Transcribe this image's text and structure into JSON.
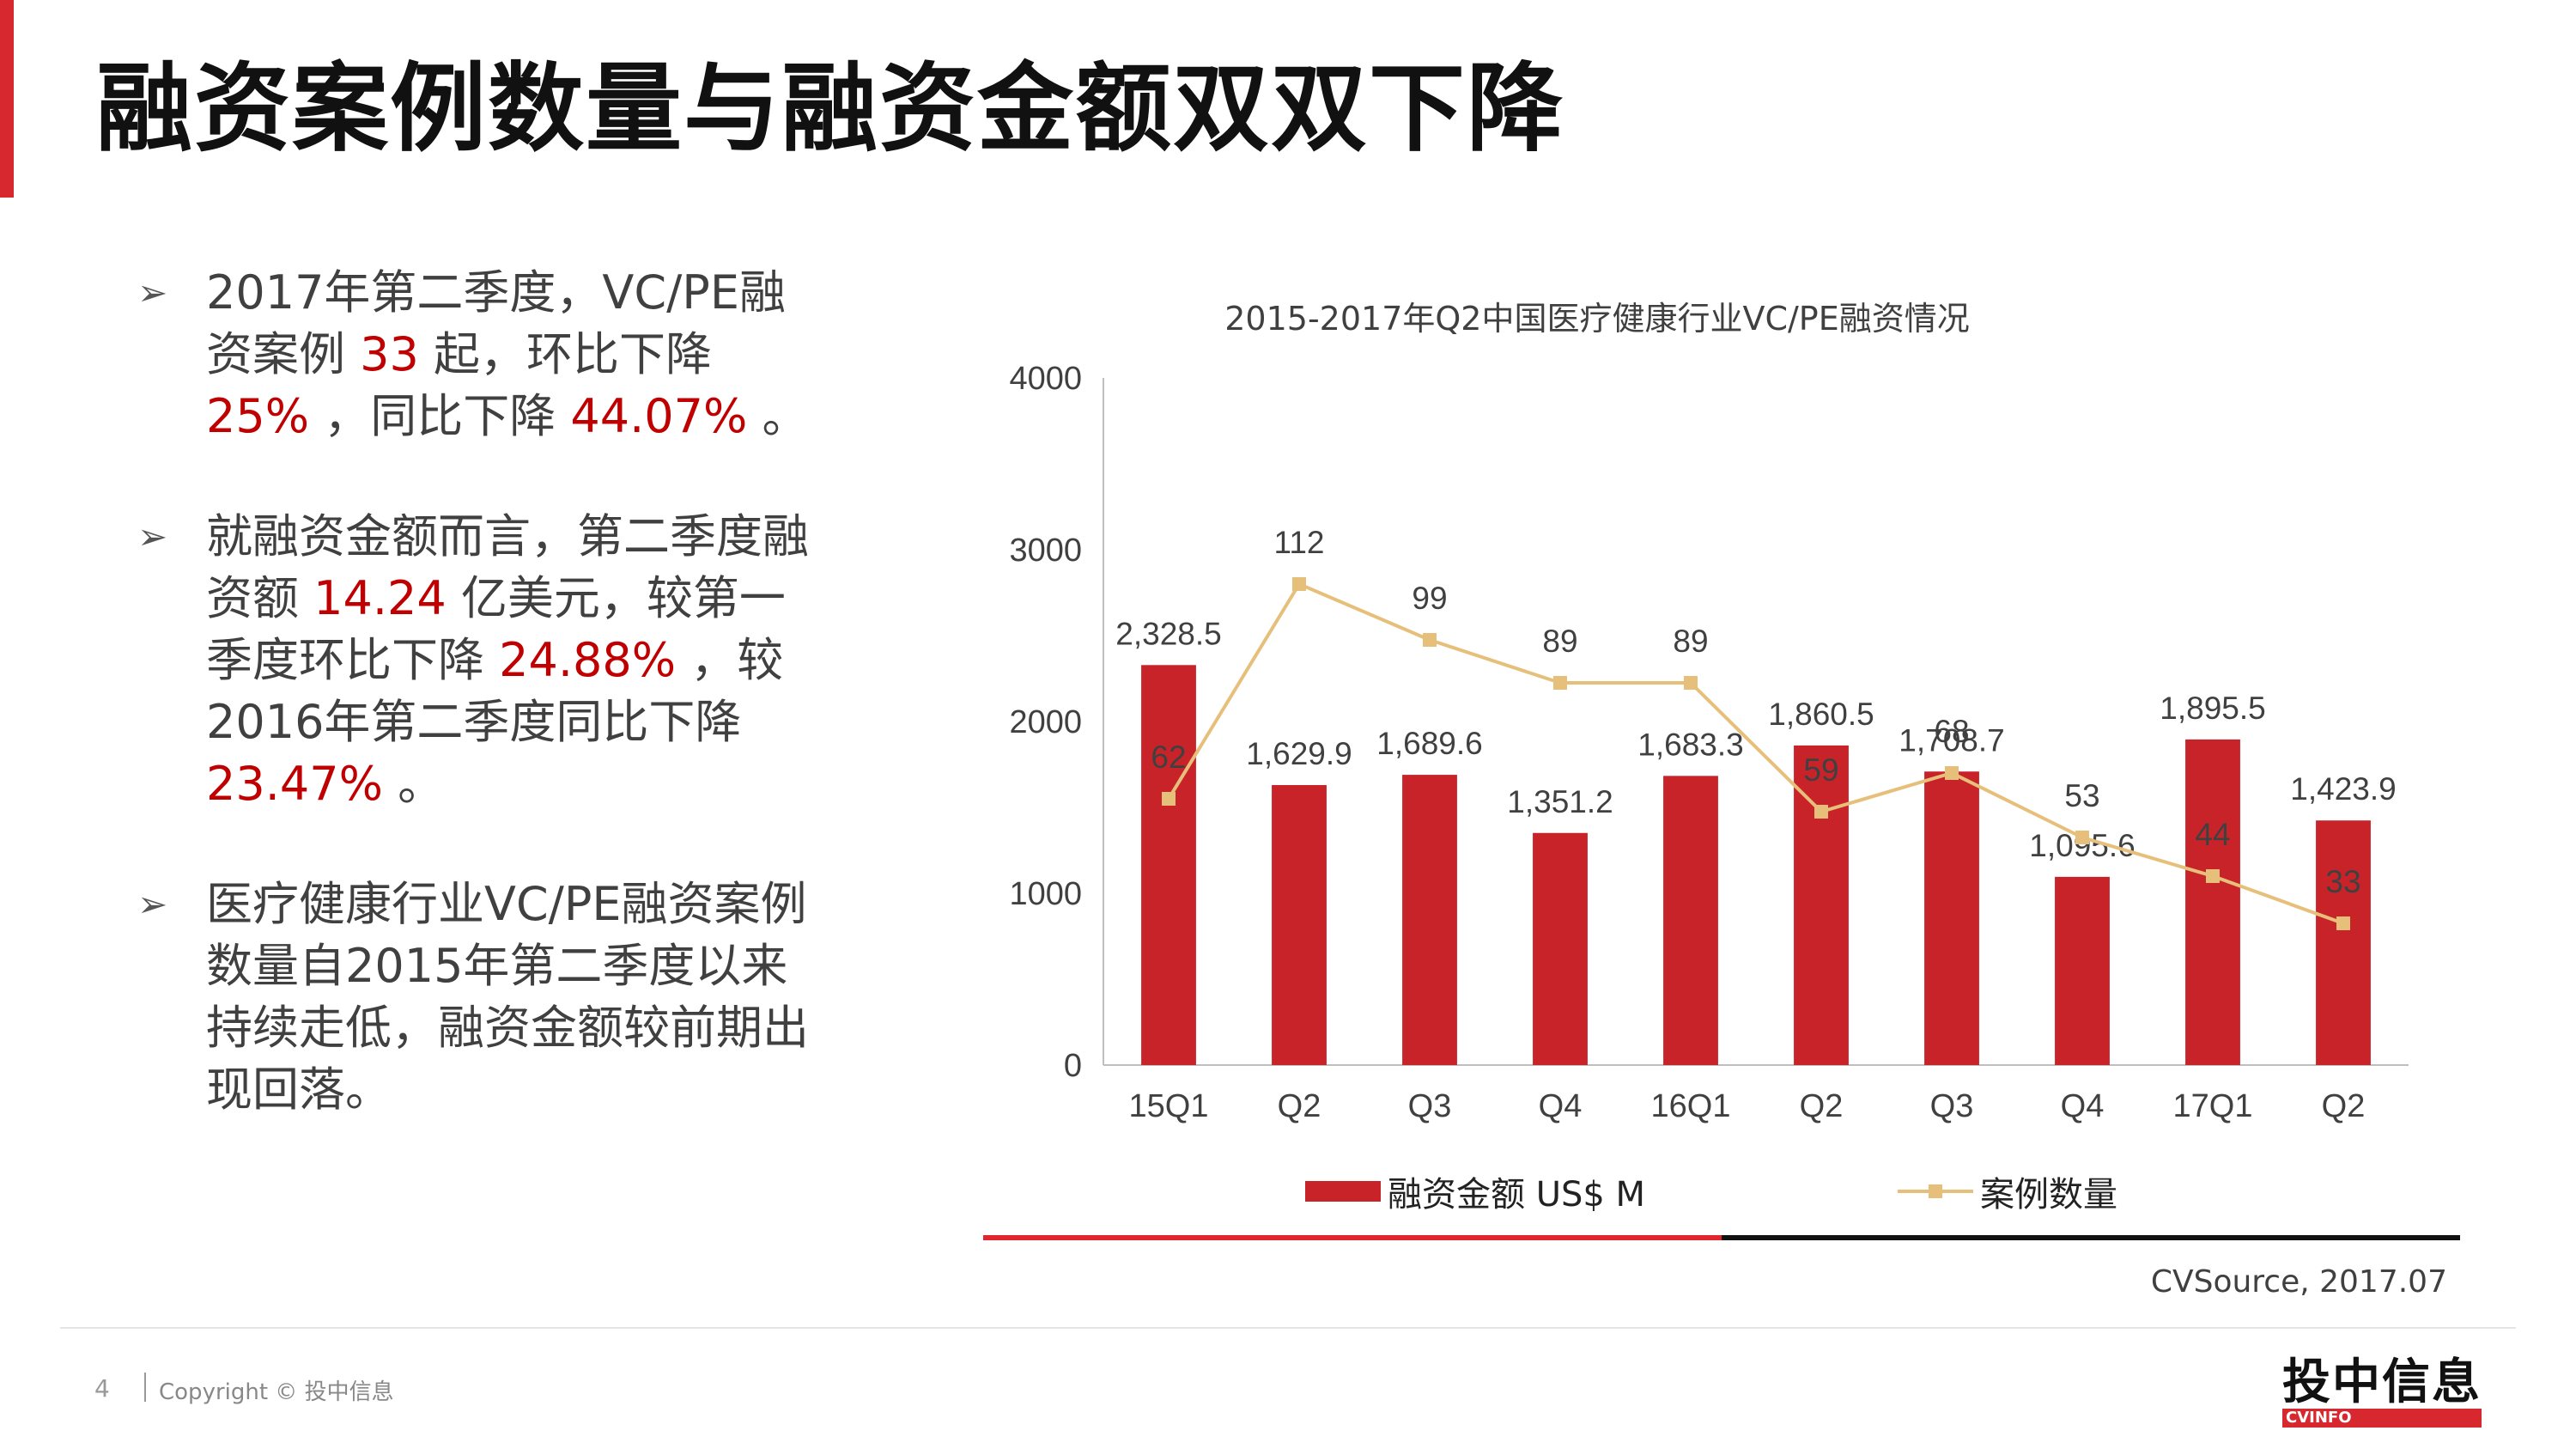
{
  "page": {
    "title": "融资案例数量与融资金额双双下降"
  },
  "bullets": [
    {
      "parts": [
        {
          "text": "2017年第二季度，VC/PE融资案例 ",
          "hl": false
        },
        {
          "text": "33",
          "hl": true
        },
        {
          "text": " 起，环比下降 ",
          "hl": false
        },
        {
          "text": "25%",
          "hl": true
        },
        {
          "text": " ，同比下降 ",
          "hl": false
        },
        {
          "text": "44.07%",
          "hl": true
        },
        {
          "text": " 。",
          "hl": false
        }
      ]
    },
    {
      "parts": [
        {
          "text": "就融资金额而言，第二季度融资额 ",
          "hl": false
        },
        {
          "text": "14.24",
          "hl": true
        },
        {
          "text": " 亿美元，较第一季度环比下降 ",
          "hl": false
        },
        {
          "text": "24.88%",
          "hl": true
        },
        {
          "text": " ，较2016年第二季度同比下降 ",
          "hl": false
        },
        {
          "text": "23.47%",
          "hl": true
        },
        {
          "text": " 。",
          "hl": false
        }
      ]
    },
    {
      "parts": [
        {
          "text": "医疗健康行业VC/PE融资案例数量自2015年第二季度以来持续走低，融资金额较前期出现回落。",
          "hl": false
        }
      ]
    }
  ],
  "chart_data": {
    "type": "bar",
    "title": "2015-2017年Q2中国医疗健康行业VC/PE融资情况",
    "categories": [
      "15Q1",
      "Q2",
      "Q3",
      "Q4",
      "16Q1",
      "Q2",
      "Q3",
      "Q4",
      "17Q1",
      "Q2"
    ],
    "ylim": [
      0,
      4000
    ],
    "yticks": [
      0,
      1000,
      2000,
      3000,
      4000
    ],
    "grid": false,
    "legend_position": "bottom",
    "series": [
      {
        "name": "融资金额 US$ M",
        "type": "bar",
        "color": "#c9232a",
        "values": [
          2328.5,
          1629.9,
          1689.6,
          1351.2,
          1683.3,
          1860.5,
          1708.7,
          1095.6,
          1895.5,
          1423.9
        ],
        "labels": [
          "2,328.5",
          "1,629.9",
          "1,689.6",
          "1,351.2",
          "1,683.3",
          "1,860.5",
          "1,708.7",
          "1,095.6",
          "1,895.5",
          "1,423.9"
        ]
      },
      {
        "name": "案例数量",
        "type": "line",
        "color": "#e6c07b",
        "values": [
          62,
          112,
          99,
          89,
          89,
          59,
          68,
          53,
          44,
          33
        ],
        "labels": [
          "62",
          "112",
          "99",
          "89",
          "89",
          "59",
          "68",
          "53",
          "44",
          "33"
        ]
      }
    ]
  },
  "source": "CVSource, 2017.07",
  "footer": {
    "page_number": "4",
    "copyright": "Copyright © 投中信息",
    "logo_main": "投中信息",
    "logo_sub": "CVINFO"
  }
}
